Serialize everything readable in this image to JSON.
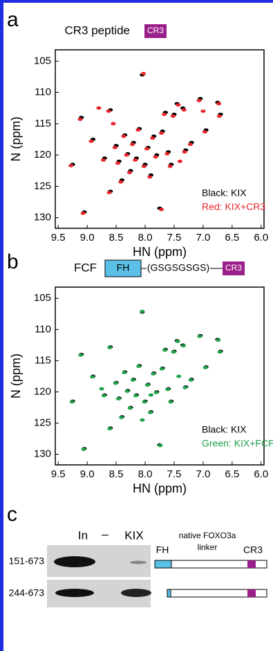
{
  "panels": [
    "a",
    "b",
    "c"
  ],
  "chart_data": [
    {
      "type": "scatter",
      "title": "CR3 peptide",
      "title_tag": "CR3",
      "x_label": "HN (ppm)",
      "y_label": "N (ppm)",
      "xlim": [
        9.55,
        5.95
      ],
      "ylim": [
        103.2,
        131.7
      ],
      "xticks": [
        9.5,
        {
          "value": 9,
          "label": "9.0"
        },
        8.5,
        {
          "value": 8,
          "label": "8.0"
        },
        7.5,
        {
          "value": 7,
          "label": "7.0"
        },
        6.5,
        {
          "value": 6,
          "label": "6.0"
        }
      ],
      "yticks": [
        105,
        110,
        115,
        120,
        125,
        130
      ],
      "series": [
        {
          "name": "Black: KIX",
          "color": "#000000",
          "x": [
            9.1,
            9.25,
            9.05,
            8.9,
            8.7,
            8.6,
            8.5,
            8.45,
            8.35,
            8.3,
            8.25,
            8.2,
            8.15,
            8.1,
            8.05,
            8.0,
            7.95,
            7.9,
            7.85,
            7.8,
            7.75,
            7.7,
            7.6,
            7.55,
            7.5,
            7.45,
            7.35,
            7.3,
            7.2,
            7.05,
            6.95,
            6.75,
            6.7,
            7.65,
            8.4,
            8.6
          ],
          "values": [
            114,
            121.5,
            129.1,
            117.5,
            120.5,
            112.8,
            118.5,
            121,
            116.8,
            119.8,
            122.5,
            118,
            120.5,
            115.8,
            107.2,
            121.5,
            118.8,
            123.2,
            117,
            120,
            128.5,
            116.2,
            119.5,
            121.5,
            113.5,
            111.8,
            112.5,
            119.2,
            118,
            111,
            116,
            111.6,
            113.5,
            113.2,
            124,
            125.8
          ]
        },
        {
          "name": "Red: KIX+CR3",
          "color": "#e8242a",
          "x": [
            9.12,
            9.28,
            9.07,
            8.93,
            8.72,
            8.63,
            8.52,
            8.47,
            8.37,
            8.32,
            8.27,
            8.22,
            8.17,
            8.12,
            8.03,
            8.02,
            7.97,
            7.92,
            7.87,
            7.82,
            7.72,
            7.72,
            7.62,
            7.57,
            7.52,
            7.43,
            7.33,
            7.32,
            7.22,
            7.07,
            6.97,
            6.73,
            6.72,
            7.67,
            8.42,
            8.62,
            8.8,
            7.4,
            8.55,
            7.0
          ],
          "values": [
            114.3,
            121.7,
            129.3,
            117.8,
            120.8,
            113,
            118.8,
            121.3,
            117,
            120,
            122.8,
            118.3,
            120.8,
            116,
            107,
            121.8,
            119,
            123.5,
            117.3,
            120.3,
            128.7,
            116.5,
            119.8,
            121.8,
            113.8,
            112,
            112.8,
            119.5,
            118.3,
            111.3,
            116.3,
            111.8,
            113.8,
            113.5,
            124.3,
            126,
            112.5,
            121,
            115,
            113
          ]
        }
      ],
      "annotations": []
    },
    {
      "type": "scatter",
      "title": "FCF",
      "x_label": "HN (ppm)",
      "y_label": "N (ppm)",
      "xlim": [
        9.55,
        5.95
      ],
      "ylim": [
        103.2,
        131.7
      ],
      "xticks": [
        9.5,
        {
          "value": 9,
          "label": "9.0"
        },
        8.5,
        {
          "value": 8,
          "label": "8.0"
        },
        7.5,
        {
          "value": 7,
          "label": "7.0"
        },
        6.5,
        {
          "value": 6,
          "label": "6.0"
        }
      ],
      "yticks": [
        105,
        110,
        115,
        120,
        125,
        130
      ],
      "series": [
        {
          "name": "Black: KIX",
          "color": "#000000",
          "x": [
            9.1,
            9.25,
            9.05,
            8.9,
            8.7,
            8.6,
            8.5,
            8.45,
            8.35,
            8.3,
            8.25,
            8.2,
            8.15,
            8.1,
            8.05,
            8.0,
            7.95,
            7.9,
            7.85,
            7.8,
            7.75,
            7.7,
            7.6,
            7.55,
            7.5,
            7.45,
            7.35,
            7.3,
            7.2,
            7.05,
            6.95,
            6.75,
            6.7,
            7.65,
            8.4,
            8.6
          ],
          "values": [
            114,
            121.5,
            129.1,
            117.5,
            120.5,
            112.8,
            118.5,
            121,
            116.8,
            119.8,
            122.5,
            118,
            120.5,
            115.8,
            107.2,
            121.5,
            118.8,
            123.2,
            117,
            120,
            128.5,
            116.2,
            119.5,
            121.5,
            113.5,
            111.8,
            112.5,
            119.2,
            118,
            111,
            116,
            111.6,
            113.5,
            113.2,
            124,
            125.8
          ]
        },
        {
          "name": "Green: KIX+FCF",
          "color": "#21a04a",
          "x": [
            9.11,
            9.26,
            9.06,
            8.91,
            8.71,
            8.61,
            8.51,
            8.46,
            8.36,
            8.31,
            8.26,
            8.21,
            8.16,
            8.11,
            8.05,
            8.01,
            7.96,
            7.91,
            7.86,
            7.81,
            7.74,
            7.71,
            7.61,
            7.56,
            7.51,
            7.44,
            7.34,
            7.31,
            7.21,
            7.06,
            6.96,
            6.74,
            6.71,
            7.66,
            8.41,
            8.61,
            8.75,
            7.42,
            8.05,
            7.9
          ],
          "values": [
            114.1,
            121.6,
            129.2,
            117.6,
            120.6,
            112.9,
            118.6,
            121.1,
            116.9,
            119.9,
            122.6,
            118.1,
            120.6,
            115.9,
            107.1,
            121.6,
            118.9,
            123.3,
            117.1,
            120.1,
            128.6,
            116.3,
            119.6,
            121.6,
            113.6,
            111.9,
            112.6,
            119.3,
            118.1,
            111.1,
            116.1,
            111.7,
            113.6,
            113.3,
            124.1,
            125.9,
            119.5,
            117.5,
            124.5,
            120.5
          ]
        }
      ]
    }
  ],
  "construct_b": {
    "fh": "FH",
    "linker": "(GSGSGSGS)",
    "cr3": "CR3"
  },
  "gel": {
    "lanes": [
      "In",
      "–",
      "KIX"
    ],
    "rows": [
      "151-673",
      "244-673"
    ],
    "diagram_title": "native FOXO3a",
    "diagram_linker": "linker",
    "fh": "FH",
    "cr3": "CR3"
  }
}
